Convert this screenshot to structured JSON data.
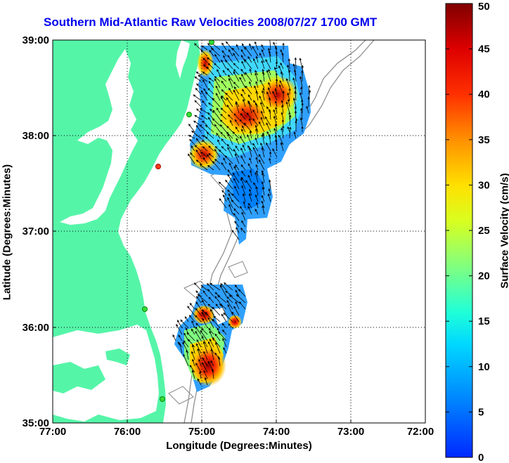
{
  "title": "Southern Mid-Atlantic Raw Velocities 2008/07/27 1700 GMT",
  "xlabel": "Longitude (Degrees:Minutes)",
  "ylabel": "Latitude (Degrees:Minutes)",
  "colorbar_label": "Surface Velocity (cm/s)",
  "chart_data": {
    "type": "heatmap",
    "x_ticks": [
      "77:00",
      "76:00",
      "75:00",
      "74:00",
      "73:00",
      "72:00"
    ],
    "y_ticks": [
      "39:00",
      "38:00",
      "37:00",
      "36:00",
      "35:00"
    ],
    "x_range": [
      -77,
      -72
    ],
    "y_range": [
      35,
      39
    ],
    "colorbar_ticks": [
      "0",
      "5",
      "10",
      "15",
      "20",
      "25",
      "30",
      "35",
      "40",
      "45",
      "50"
    ],
    "colorbar_range": [
      0,
      50
    ],
    "land_color": "#55f5a8",
    "grid": true
  }
}
